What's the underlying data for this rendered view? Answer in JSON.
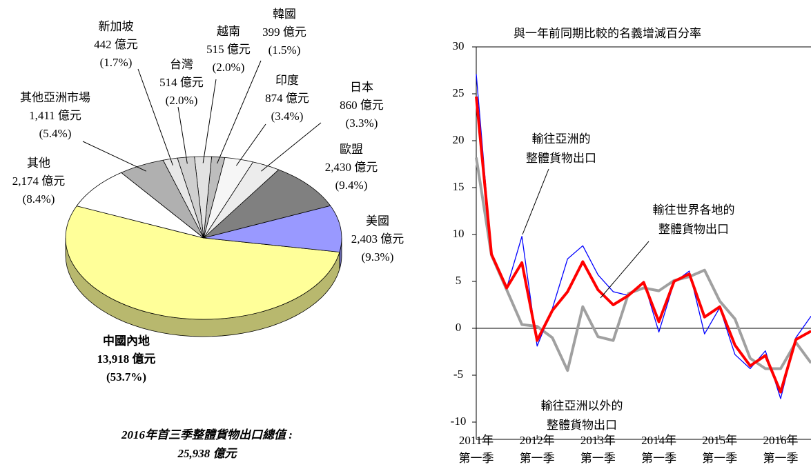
{
  "chart_data": [
    {
      "type": "pie",
      "title": "2016年首三季整體貨物出口總值 :",
      "total_label": "25,938 億元",
      "categories": [
        "中國內地",
        "美國",
        "歐盟",
        "日本",
        "印度",
        "韓國",
        "越南",
        "台灣",
        "新加坡",
        "其他亞洲市場",
        "其他"
      ],
      "values": [
        13918,
        2403,
        2430,
        860,
        874,
        399,
        515,
        514,
        442,
        1411,
        2174
      ],
      "value_labels": [
        "13,918 億元",
        "2,403 億元",
        "2,430 億元",
        "860 億元",
        "874 億元",
        "399 億元",
        "515 億元",
        "514 億元",
        "442 億元",
        "1,411 億元",
        "2,174 億元"
      ],
      "percents": [
        53.7,
        9.3,
        9.4,
        3.3,
        3.4,
        1.5,
        2.0,
        2.0,
        1.7,
        5.4,
        8.4
      ],
      "percent_labels": [
        "(53.7%)",
        "(9.3%)",
        "(9.4%)",
        "(3.3%)",
        "(3.4%)",
        "(1.5%)",
        "(2.0%)",
        "(2.0%)",
        "(1.7%)",
        "(5.4%)",
        "(8.4%)"
      ],
      "colors": [
        "#ffff99",
        "#9999ff",
        "#808080",
        "#ececec",
        "#f6f6f6",
        "#bdbdbd",
        "#e2e2e2",
        "#cfcfcf",
        "#e8e8e8",
        "#b0b0b0",
        "#ffffff"
      ]
    },
    {
      "type": "line",
      "title": "與一年前同期比較的名義增減百分率",
      "categories": [
        "2011年\n第一季",
        null,
        null,
        null,
        "2012年\n第一季",
        null,
        null,
        null,
        "2013年\n第一季",
        null,
        null,
        null,
        "2014年\n第一季",
        null,
        null,
        null,
        "2015年\n第一季",
        null,
        null,
        null,
        "2016年\n第一季",
        null,
        null
      ],
      "series": [
        {
          "name": "輸往世界各地的\n整體貨物出口",
          "color": "#ff0000",
          "values": [
            24.7,
            7.9,
            4.3,
            7.0,
            -1.3,
            1.9,
            3.9,
            7.1,
            4.1,
            2.5,
            3.5,
            4.9,
            0.7,
            5.0,
            5.8,
            1.2,
            2.3,
            -1.8,
            -4.0,
            -2.9,
            -6.8,
            -1.2,
            -0.3
          ]
        },
        {
          "name": "輸往亞洲的\n整體貨物出口",
          "color": "#0000ff",
          "values": [
            27.1,
            8.0,
            4.3,
            9.8,
            -1.9,
            2.1,
            7.4,
            8.8,
            5.7,
            3.9,
            3.5,
            5.0,
            -0.4,
            4.9,
            6.1,
            -0.6,
            2.2,
            -2.8,
            -4.3,
            -2.4,
            -7.5,
            -1.0,
            1.3
          ]
        },
        {
          "name": "輸往亞洲以外的\n整體貨物出口",
          "color": "#a0a0a0",
          "values": [
            18.2,
            7.8,
            4.1,
            0.4,
            0.2,
            -1.0,
            -4.5,
            2.3,
            -0.9,
            -1.3,
            3.7,
            4.3,
            4.0,
            5.1,
            5.5,
            6.2,
            2.9,
            1.0,
            -3.2,
            -4.3,
            -4.3,
            -1.5,
            -3.7
          ]
        }
      ],
      "ylim": [
        -10,
        30
      ],
      "yticks": [
        -10,
        -5,
        0,
        5,
        10,
        15,
        20,
        25,
        30
      ]
    }
  ]
}
